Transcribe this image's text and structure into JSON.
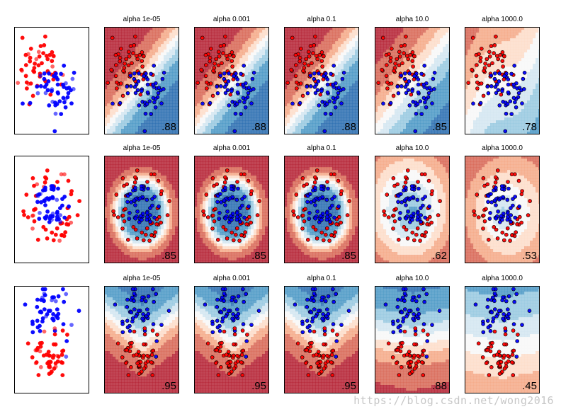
{
  "chart_data": {
    "type": "scatter",
    "description_free": true,
    "rows": [
      {
        "dataset": "moons",
        "panels": [
          {
            "title": "",
            "score": ""
          },
          {
            "title": "alpha 1e-05",
            "score": ".88"
          },
          {
            "title": "alpha 0.001",
            "score": ".88"
          },
          {
            "title": "alpha 0.1",
            "score": ".88"
          },
          {
            "title": "alpha 10.0",
            "score": ".85"
          },
          {
            "title": "alpha 1000.0",
            "score": ".78"
          }
        ]
      },
      {
        "dataset": "circles",
        "panels": [
          {
            "title": "",
            "score": ""
          },
          {
            "title": "alpha 1e-05",
            "score": ".85"
          },
          {
            "title": "alpha 0.001",
            "score": ".85"
          },
          {
            "title": "alpha 0.1",
            "score": ".85"
          },
          {
            "title": "alpha 10.0",
            "score": ".62"
          },
          {
            "title": "alpha 1000.0",
            "score": ".53"
          }
        ]
      },
      {
        "dataset": "linear",
        "panels": [
          {
            "title": "",
            "score": ""
          },
          {
            "title": "alpha 1e-05",
            "score": ".95"
          },
          {
            "title": "alpha 0.001",
            "score": ".95"
          },
          {
            "title": "alpha 0.1",
            "score": ".95"
          },
          {
            "title": "alpha 10.0",
            "score": ".88"
          },
          {
            "title": "alpha 1000.0",
            "score": ".45"
          }
        ]
      }
    ],
    "colors": {
      "class_red": "#ff0000",
      "class_blue": "#0000ff",
      "red_region": "#b2182b",
      "blue_region": "#2166ac",
      "mid": "#f7f7f7"
    }
  },
  "watermark": "https://blog.csdn.net/wong2016"
}
